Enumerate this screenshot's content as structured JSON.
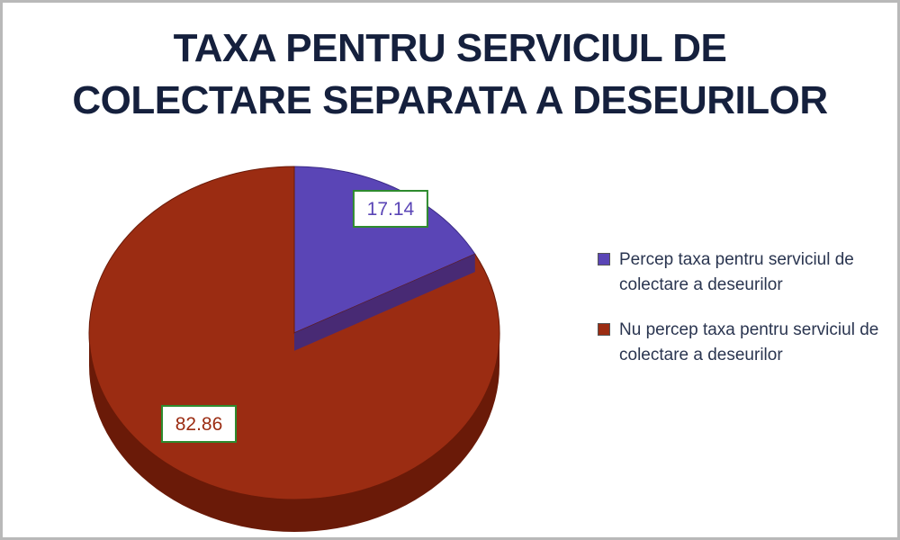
{
  "chart_data": {
    "type": "pie",
    "title_lines": [
      "TAXA PENTRU SERVICIUL DE",
      "COLECTARE SEPARATA A DESEURILOR"
    ],
    "slices": [
      {
        "label": "Percep taxa pentru serviciul de colectare a deseurilor",
        "value": 17.14,
        "display": "17.14",
        "color": "#5a45b6",
        "side_color": "#3a2a86"
      },
      {
        "label": "Nu percep taxa pentru serviciul de colectare a deseurilor",
        "value": 82.86,
        "display": "82.86",
        "color": "#9b2c12",
        "side_color": "#6a1a08"
      }
    ],
    "legend_position": "right",
    "label_border_color": "#2e8b2e"
  }
}
